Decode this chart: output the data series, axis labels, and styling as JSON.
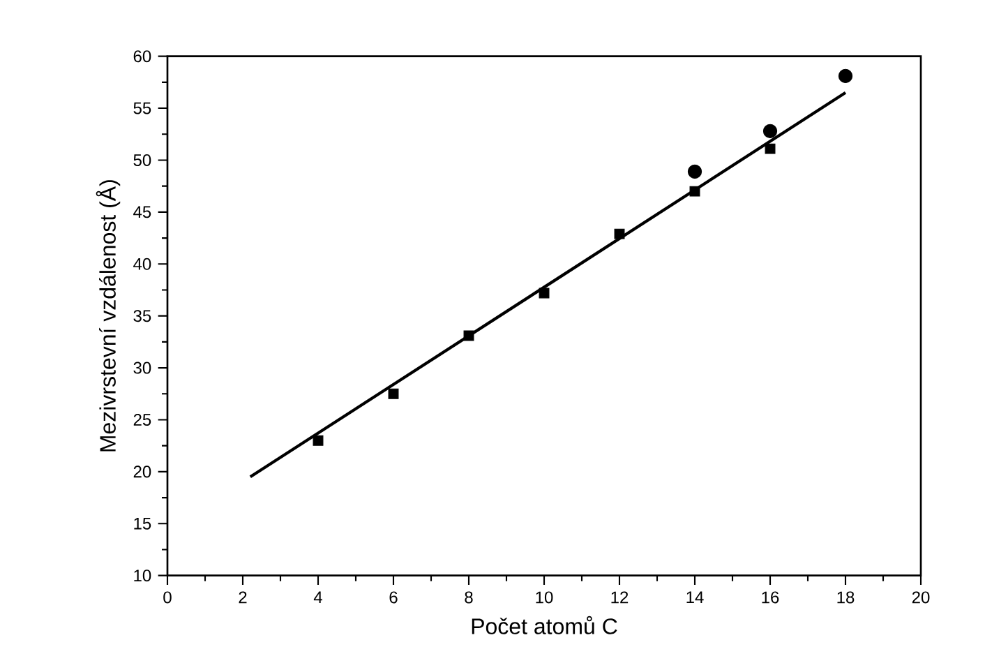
{
  "chart_data": {
    "type": "scatter",
    "xlabel": "Počet atomů C",
    "ylabel": "Mezivrstevní vzdálenost (Å)",
    "xlim": [
      0,
      20
    ],
    "ylim": [
      10,
      60
    ],
    "xticks": [
      0,
      2,
      4,
      6,
      8,
      10,
      12,
      14,
      16,
      18,
      20
    ],
    "yticks": [
      10,
      15,
      20,
      25,
      30,
      35,
      40,
      45,
      50,
      55,
      60
    ],
    "grid": false,
    "series": [
      {
        "type": "line",
        "color": "#000000",
        "marker": "none",
        "line_style": "solid",
        "x": [
          2.2,
          18
        ],
        "values": [
          19.5,
          56.5
        ]
      },
      {
        "color": "#000000",
        "marker": "square",
        "x": [
          4,
          6,
          8,
          10,
          12,
          14,
          16
        ],
        "values": [
          23,
          27.5,
          33.1,
          37.2,
          42.9,
          47,
          51.1
        ]
      },
      {
        "color": "#000000",
        "marker": "circle",
        "x": [
          14,
          16,
          18
        ],
        "values": [
          48.9,
          52.8,
          58.1
        ]
      }
    ]
  }
}
